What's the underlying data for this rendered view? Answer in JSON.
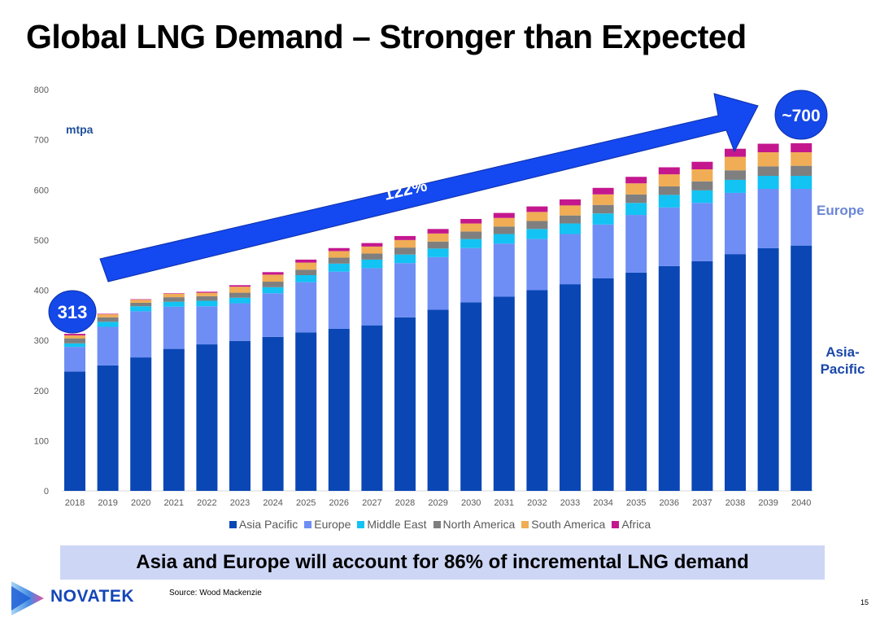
{
  "slide": {
    "title": "Global LNG Demand – Stronger than Expected",
    "unit_label": "mtpa",
    "side_label_europe": "Europe",
    "side_label_asia": "Asia-Pacific",
    "banner_text": "Asia and Europe will account for 86% of incremental LNG demand",
    "brand_name": "NOVATEK",
    "logo_icon": "novatek-logo-icon",
    "source": "Source: Wood Mackenzie",
    "page_number": "15"
  },
  "chart_data": {
    "type": "bar",
    "stacked": true,
    "title": "Global LNG Demand",
    "xlabel": "",
    "ylabel": "mtpa",
    "ylim": [
      0,
      800
    ],
    "yticks": [
      0,
      100,
      200,
      300,
      400,
      500,
      600,
      700,
      800
    ],
    "grid": false,
    "legend_position": "bottom",
    "categories": [
      "2018",
      "2019",
      "2020",
      "2021",
      "2022",
      "2023",
      "2024",
      "2025",
      "2026",
      "2027",
      "2028",
      "2029",
      "2030",
      "2031",
      "2032",
      "2033",
      "2034",
      "2035",
      "2036",
      "2037",
      "2038",
      "2039",
      "2040"
    ],
    "series": [
      {
        "name": "Asia Pacific",
        "color": "#0a47b5",
        "values": [
          238,
          250,
          266,
          283,
          292,
          299,
          307,
          316,
          323,
          330,
          346,
          361,
          376,
          387,
          400,
          412,
          424,
          435,
          448,
          458,
          472,
          484,
          489
        ]
      },
      {
        "name": "Europe",
        "color": "#6e8ef5",
        "values": [
          49,
          77,
          92,
          84,
          76,
          75,
          87,
          100,
          114,
          114,
          108,
          105,
          108,
          106,
          102,
          100,
          107,
          115,
          117,
          116,
          122,
          118,
          113
        ]
      },
      {
        "name": "Middle East",
        "color": "#12c3f3",
        "values": [
          7,
          10,
          10,
          10,
          11,
          11,
          12,
          14,
          16,
          17,
          17,
          17,
          18,
          19,
          20,
          21,
          22,
          24,
          25,
          25,
          26,
          26,
          26
        ]
      },
      {
        "name": "North America",
        "color": "#7f7f7f",
        "values": [
          10,
          9,
          7,
          9,
          9,
          10,
          11,
          11,
          12,
          12,
          14,
          14,
          15,
          15,
          16,
          16,
          17,
          17,
          17,
          18,
          19,
          19,
          20
        ]
      },
      {
        "name": "South America",
        "color": "#f0ad55",
        "values": [
          6,
          6,
          6,
          7,
          7,
          12,
          14,
          14,
          13,
          14,
          15,
          16,
          16,
          17,
          18,
          20,
          21,
          22,
          24,
          24,
          27,
          28,
          27
        ]
      },
      {
        "name": "Africa",
        "color": "#c4178e",
        "values": [
          3,
          1,
          1,
          1,
          2,
          3,
          5,
          6,
          6,
          7,
          8,
          9,
          9,
          10,
          11,
          12,
          13,
          13,
          14,
          15,
          16,
          17,
          18
        ]
      }
    ],
    "annotations": {
      "start_badge": "313",
      "end_badge": "~700",
      "arrow_label": "122%"
    }
  }
}
